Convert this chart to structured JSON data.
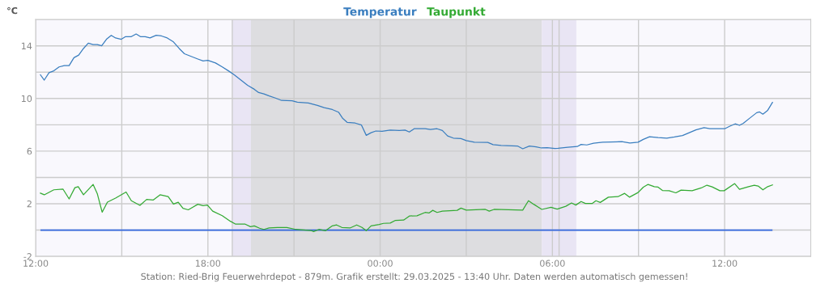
{
  "chart_data": {
    "type": "line",
    "ylabel": "°C",
    "legend": "top",
    "grid": true,
    "marker": "none",
    "line_style": "solid",
    "xlim": [
      "2025-03-28T12:00",
      "2025-03-29T15:00"
    ],
    "xticks": [
      {
        "value": "2025-03-28T12:00",
        "label": "12:00"
      },
      {
        "value": "2025-03-28T15:00",
        "label": null
      },
      {
        "value": "2025-03-28T18:00",
        "label": "18:00"
      },
      {
        "value": "2025-03-28T21:00",
        "label": null
      },
      {
        "value": "2025-03-29T00:00",
        "label": "00:00"
      },
      {
        "value": "2025-03-29T03:00",
        "label": null
      },
      {
        "value": "2025-03-29T06:00",
        "label": "06:00"
      },
      {
        "value": "2025-03-29T09:00",
        "label": null
      },
      {
        "value": "2025-03-29T12:00",
        "label": "12:00"
      }
    ],
    "ylim": [
      -2,
      16
    ],
    "yticks": [
      -2,
      {
        "value": 0,
        "label": null
      },
      2,
      {
        "value": 4,
        "label": null
      },
      6,
      {
        "value": 8,
        "label": null
      },
      10,
      {
        "value": 12,
        "label": null
      },
      14,
      {
        "value": 16,
        "label": null
      }
    ],
    "bands": [
      {
        "axis": "x",
        "from": "2025-03-28T18:51",
        "to": "2025-03-28T19:30",
        "color": "#e9e5f4"
      },
      {
        "axis": "x",
        "from": "2025-03-28T19:30",
        "to": "2025-03-29T05:38",
        "color": "#dddde0"
      },
      {
        "axis": "x",
        "from": "2025-03-29T05:38",
        "to": "2025-03-29T06:50",
        "color": "#e9e5f4"
      }
    ],
    "ref_lines": [
      {
        "axis": "x",
        "value": "2025-03-28T18:51",
        "color": "#cccccc"
      },
      {
        "axis": "x",
        "value": "2025-03-29T06:14",
        "color": "#cccccc"
      },
      {
        "axis": "y",
        "value": 0,
        "color": "#3366dd"
      }
    ],
    "series": [
      {
        "name": "Temperatur",
        "color": "#3a7ebf",
        "x": [
          "2025-03-28T12:10",
          "2025-03-28T12:18",
          "2025-03-28T12:28",
          "2025-03-28T12:38",
          "2025-03-28T12:49",
          "2025-03-28T13:00",
          "2025-03-28T13:10",
          "2025-03-28T13:20",
          "2025-03-28T13:30",
          "2025-03-28T13:40",
          "2025-03-28T13:50",
          "2025-03-28T14:00",
          "2025-03-28T14:09",
          "2025-03-28T14:18",
          "2025-03-28T14:28",
          "2025-03-28T14:38",
          "2025-03-28T14:47",
          "2025-03-28T14:59",
          "2025-03-28T15:08",
          "2025-03-28T15:20",
          "2025-03-28T15:30",
          "2025-03-28T15:39",
          "2025-03-28T15:49",
          "2025-03-28T15:59",
          "2025-03-28T16:12",
          "2025-03-28T16:23",
          "2025-03-28T16:35",
          "2025-03-28T16:48",
          "2025-03-28T17:00",
          "2025-03-28T17:11",
          "2025-03-28T17:25",
          "2025-03-28T17:39",
          "2025-03-28T17:50",
          "2025-03-28T18:00",
          "2025-03-28T18:16",
          "2025-03-28T18:30",
          "2025-03-28T18:43",
          "2025-03-28T18:55",
          "2025-03-28T19:09",
          "2025-03-28T19:23",
          "2025-03-28T19:37",
          "2025-03-28T19:46",
          "2025-03-28T19:57",
          "2025-03-28T20:08",
          "2025-03-28T20:20",
          "2025-03-28T20:34",
          "2025-03-28T20:56",
          "2025-03-28T21:07",
          "2025-03-28T21:30",
          "2025-03-28T21:49",
          "2025-03-28T22:03",
          "2025-03-28T22:20",
          "2025-03-28T22:33",
          "2025-03-28T22:42",
          "2025-03-28T22:51",
          "2025-03-28T23:08",
          "2025-03-28T23:21",
          "2025-03-28T23:31",
          "2025-03-28T23:41",
          "2025-03-28T23:51",
          "2025-03-29T00:04",
          "2025-03-29T00:21",
          "2025-03-29T00:40",
          "2025-03-29T00:52",
          "2025-03-29T01:01",
          "2025-03-29T01:11",
          "2025-03-29T01:34",
          "2025-03-29T01:45",
          "2025-03-29T01:59",
          "2025-03-29T02:10",
          "2025-03-29T02:21",
          "2025-03-29T02:33",
          "2025-03-29T02:49",
          "2025-03-29T03:00",
          "2025-03-29T03:17",
          "2025-03-29T03:45",
          "2025-03-29T03:56",
          "2025-03-29T04:13",
          "2025-03-29T04:47",
          "2025-03-29T04:58",
          "2025-03-29T05:12",
          "2025-03-29T05:26",
          "2025-03-29T05:37",
          "2025-03-29T05:49",
          "2025-03-29T06:05",
          "2025-03-29T06:12",
          "2025-03-29T06:32",
          "2025-03-29T06:52",
          "2025-03-29T07:00",
          "2025-03-29T07:12",
          "2025-03-29T07:26",
          "2025-03-29T07:45",
          "2025-03-29T08:25",
          "2025-03-29T08:42",
          "2025-03-29T08:59",
          "2025-03-29T09:10",
          "2025-03-29T09:23",
          "2025-03-29T09:41",
          "2025-03-29T09:59",
          "2025-03-29T10:15",
          "2025-03-29T10:32",
          "2025-03-29T10:46",
          "2025-03-29T11:00",
          "2025-03-29T11:17",
          "2025-03-29T11:29",
          "2025-03-29T12:01",
          "2025-03-29T12:11",
          "2025-03-29T12:22",
          "2025-03-29T12:31",
          "2025-03-29T12:39",
          "2025-03-29T12:53",
          "2025-03-29T13:07",
          "2025-03-29T13:13",
          "2025-03-29T13:20",
          "2025-03-29T13:30",
          "2025-03-29T13:40"
        ],
        "values": [
          11.8,
          11.4,
          11.96,
          12.1,
          12.4,
          12.5,
          12.5,
          13.1,
          13.3,
          13.8,
          14.2,
          14.1,
          14.1,
          14.0,
          14.5,
          14.8,
          14.6,
          14.5,
          14.7,
          14.7,
          14.9,
          14.7,
          14.7,
          14.6,
          14.8,
          14.75,
          14.6,
          14.3,
          13.8,
          13.4,
          13.2,
          13.0,
          12.85,
          12.9,
          12.7,
          12.4,
          12.1,
          11.8,
          11.4,
          11.0,
          10.7,
          10.45,
          10.35,
          10.2,
          10.05,
          9.85,
          9.83,
          9.72,
          9.66,
          9.47,
          9.3,
          9.16,
          8.96,
          8.48,
          8.19,
          8.13,
          7.98,
          7.2,
          7.4,
          7.53,
          7.5,
          7.6,
          7.57,
          7.6,
          7.45,
          7.7,
          7.7,
          7.65,
          7.7,
          7.57,
          7.15,
          6.99,
          6.95,
          6.8,
          6.68,
          6.66,
          6.49,
          6.43,
          6.39,
          6.18,
          6.39,
          6.33,
          6.24,
          6.26,
          6.2,
          6.22,
          6.3,
          6.35,
          6.51,
          6.47,
          6.6,
          6.68,
          6.72,
          6.62,
          6.68,
          6.89,
          7.09,
          7.03,
          6.99,
          7.07,
          7.18,
          7.4,
          7.61,
          7.78,
          7.71,
          7.71,
          7.9,
          8.07,
          7.96,
          8.11,
          8.52,
          8.92,
          8.98,
          8.81,
          9.1,
          9.7
        ]
      },
      {
        "name": "Taupunkt",
        "color": "#33aa33",
        "x": [
          "2025-03-28T12:10",
          "2025-03-28T12:18",
          "2025-03-28T12:38",
          "2025-03-28T12:57",
          "2025-03-28T13:10",
          "2025-03-28T13:22",
          "2025-03-28T13:29",
          "2025-03-28T13:40",
          "2025-03-28T14:00",
          "2025-03-28T14:09",
          "2025-03-28T14:19",
          "2025-03-28T14:30",
          "2025-03-28T14:47",
          "2025-03-28T15:09",
          "2025-03-28T15:20",
          "2025-03-28T15:38",
          "2025-03-28T15:52",
          "2025-03-28T16:06",
          "2025-03-28T16:20",
          "2025-03-28T16:37",
          "2025-03-28T16:48",
          "2025-03-28T16:58",
          "2025-03-28T17:08",
          "2025-03-28T17:19",
          "2025-03-28T17:39",
          "2025-03-28T17:50",
          "2025-03-28T17:59",
          "2025-03-28T18:10",
          "2025-03-28T18:30",
          "2025-03-28T18:47",
          "2025-03-28T18:58",
          "2025-03-28T19:18",
          "2025-03-28T19:29",
          "2025-03-28T19:37",
          "2025-03-28T19:48",
          "2025-03-28T19:57",
          "2025-03-28T20:08",
          "2025-03-28T20:25",
          "2025-03-28T20:45",
          "2025-03-28T21:04",
          "2025-03-28T21:35",
          "2025-03-28T21:41",
          "2025-03-28T21:52",
          "2025-03-28T22:06",
          "2025-03-28T22:20",
          "2025-03-28T22:29",
          "2025-03-28T22:40",
          "2025-03-28T22:57",
          "2025-03-28T23:11",
          "2025-03-28T23:22",
          "2025-03-28T23:31",
          "2025-03-28T23:41",
          "2025-03-28T23:58",
          "2025-03-29T00:07",
          "2025-03-29T00:21",
          "2025-03-29T00:32",
          "2025-03-29T00:49",
          "2025-03-29T01:01",
          "2025-03-29T01:17",
          "2025-03-29T01:34",
          "2025-03-29T01:42",
          "2025-03-29T01:50",
          "2025-03-29T01:59",
          "2025-03-29T02:10",
          "2025-03-29T02:41",
          "2025-03-29T02:49",
          "2025-03-29T03:00",
          "2025-03-29T03:40",
          "2025-03-29T03:48",
          "2025-03-29T03:58",
          "2025-03-29T04:58",
          "2025-03-29T05:10",
          "2025-03-29T05:21",
          "2025-03-29T05:38",
          "2025-03-29T05:57",
          "2025-03-29T06:10",
          "2025-03-29T06:28",
          "2025-03-29T06:40",
          "2025-03-29T06:49",
          "2025-03-29T07:00",
          "2025-03-29T07:09",
          "2025-03-29T07:23",
          "2025-03-29T07:31",
          "2025-03-29T07:40",
          "2025-03-29T07:57",
          "2025-03-29T08:17",
          "2025-03-29T08:31",
          "2025-03-29T08:41",
          "2025-03-29T08:59",
          "2025-03-29T09:10",
          "2025-03-29T09:20",
          "2025-03-29T09:33",
          "2025-03-29T09:41",
          "2025-03-29T09:50",
          "2025-03-29T10:04",
          "2025-03-29T10:18",
          "2025-03-29T10:29",
          "2025-03-29T10:52",
          "2025-03-29T11:11",
          "2025-03-29T11:23",
          "2025-03-29T11:34",
          "2025-03-29T11:50",
          "2025-03-29T11:59",
          "2025-03-29T12:21",
          "2025-03-29T12:31",
          "2025-03-29T12:50",
          "2025-03-29T13:02",
          "2025-03-29T13:10",
          "2025-03-29T13:20",
          "2025-03-29T13:30",
          "2025-03-29T13:40"
        ],
        "values": [
          2.81,
          2.68,
          3.06,
          3.12,
          2.37,
          3.22,
          3.3,
          2.68,
          3.47,
          2.75,
          1.36,
          2.12,
          2.43,
          2.89,
          2.23,
          1.88,
          2.33,
          2.29,
          2.68,
          2.54,
          1.98,
          2.12,
          1.65,
          1.54,
          1.96,
          1.86,
          1.9,
          1.44,
          1.09,
          0.67,
          0.45,
          0.45,
          0.26,
          0.32,
          0.14,
          0.05,
          0.16,
          0.2,
          0.2,
          0.05,
          -0.03,
          -0.11,
          0.05,
          -0.05,
          0.32,
          0.39,
          0.2,
          0.16,
          0.39,
          0.2,
          -0.05,
          0.32,
          0.43,
          0.51,
          0.53,
          0.74,
          0.76,
          1.07,
          1.09,
          1.34,
          1.3,
          1.5,
          1.34,
          1.44,
          1.5,
          1.67,
          1.52,
          1.57,
          1.44,
          1.57,
          1.52,
          2.23,
          1.96,
          1.57,
          1.73,
          1.59,
          1.81,
          2.06,
          1.9,
          2.17,
          2.02,
          2.02,
          2.23,
          2.1,
          2.5,
          2.54,
          2.79,
          2.5,
          2.85,
          3.26,
          3.47,
          3.3,
          3.26,
          3.01,
          2.99,
          2.83,
          3.04,
          2.99,
          3.2,
          3.41,
          3.28,
          2.99,
          2.99,
          3.53,
          3.1,
          3.3,
          3.41,
          3.35,
          3.06,
          3.3,
          3.43
        ]
      }
    ],
    "annotations": [
      "Station: Ried-Brig Feuerwehrdepot - 879m. Grafik erstellt: 29.03.2025 - 13:40 Uhr. Daten werden automatisch gemessen!"
    ]
  }
}
